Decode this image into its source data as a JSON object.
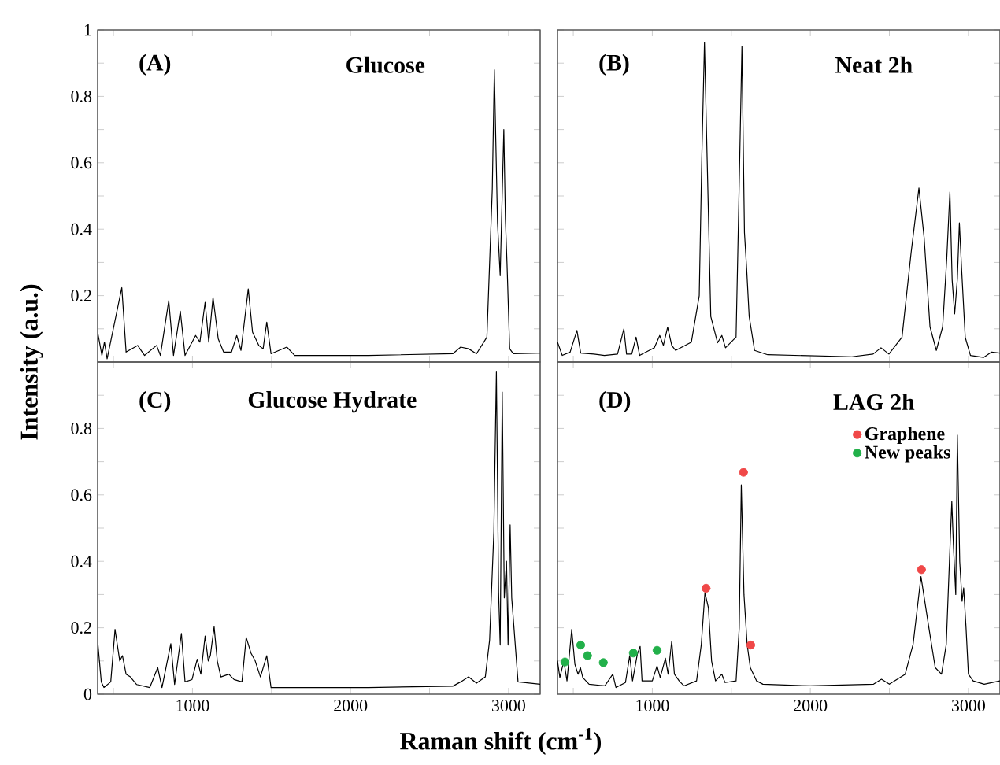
{
  "chart_data": [
    {
      "type": "line",
      "title": "Glucose",
      "annotations": [
        "(A)"
      ],
      "ylabel": "Intensity (a.u.)",
      "xlim": [
        400,
        3200
      ],
      "xticks": [
        {
          "value": 500,
          "label": null
        },
        1000,
        {
          "value": 1500,
          "label": null
        },
        2000,
        {
          "value": 2500,
          "label": null
        },
        3000
      ],
      "ylim": [
        0,
        1
      ],
      "yticks": [
        {
          "value": 0.1,
          "label": null
        },
        0.2,
        {
          "value": 0.3,
          "label": null
        },
        0.4,
        {
          "value": 0.5,
          "label": null
        },
        0.6,
        {
          "value": 0.7,
          "label": null
        },
        0.8,
        {
          "value": 0.9,
          "label": null
        },
        1
      ],
      "tick_labels": "y",
      "grid": false,
      "legend": false,
      "series": [
        {
          "color": "#000000",
          "x": [
            400,
            427,
            443,
            460,
            553,
            580,
            653,
            697,
            773,
            797,
            850,
            880,
            923,
            953,
            1020,
            1047,
            1080,
            1103,
            1130,
            1163,
            1197,
            1247,
            1280,
            1307,
            1353,
            1380,
            1420,
            1447,
            1470,
            1497,
            1597,
            1647,
            2113,
            2647,
            2697,
            2747,
            2797,
            2863,
            2897,
            2910,
            2930,
            2947,
            2970,
            2980,
            2990,
            3007,
            3030,
            3200
          ],
          "values": [
            0.09,
            0.02,
            0.06,
            0.01,
            0.224,
            0.03,
            0.05,
            0.02,
            0.05,
            0.02,
            0.185,
            0.02,
            0.153,
            0.02,
            0.08,
            0.06,
            0.18,
            0.06,
            0.195,
            0.07,
            0.03,
            0.03,
            0.08,
            0.035,
            0.22,
            0.09,
            0.05,
            0.04,
            0.12,
            0.025,
            0.045,
            0.02,
            0.02,
            0.025,
            0.045,
            0.04,
            0.025,
            0.075,
            0.52,
            0.88,
            0.42,
            0.26,
            0.7,
            0.43,
            0.3,
            0.04,
            0.025,
            0.027
          ]
        }
      ]
    },
    {
      "type": "line",
      "title": "Neat 2h",
      "annotations": [
        "(B)"
      ],
      "xlim": [
        400,
        3200
      ],
      "xticks": [
        {
          "value": 500,
          "label": null
        },
        1000,
        {
          "value": 1500,
          "label": null
        },
        2000,
        {
          "value": 2500,
          "label": null
        },
        3000
      ],
      "ylim": [
        0,
        1
      ],
      "yticks": [
        {
          "value": 0.1,
          "label": null
        },
        0.2,
        {
          "value": 0.3,
          "label": null
        },
        0.4,
        {
          "value": 0.5,
          "label": null
        },
        0.6,
        {
          "value": 0.7,
          "label": null
        },
        0.8,
        {
          "value": 0.9,
          "label": null
        },
        1
      ],
      "tick_labels": false,
      "grid": false,
      "legend": false,
      "series": [
        {
          "color": "#000000",
          "x": [
            400,
            430,
            480,
            523,
            547,
            630,
            697,
            780,
            820,
            837,
            870,
            897,
            920,
            980,
            1013,
            1047,
            1070,
            1097,
            1123,
            1147,
            1247,
            1297,
            1313,
            1330,
            1347,
            1370,
            1413,
            1440,
            1463,
            1530,
            1553,
            1567,
            1583,
            1597,
            1613,
            1647,
            1730,
            2263,
            2397,
            2447,
            2497,
            2580,
            2637,
            2687,
            2720,
            2757,
            2797,
            2837,
            2863,
            2883,
            2897,
            2913,
            2930,
            2943,
            2957,
            2980,
            3013,
            3097,
            3147,
            3200
          ],
          "values": [
            0.06,
            0.02,
            0.03,
            0.095,
            0.027,
            0.024,
            0.02,
            0.024,
            0.1,
            0.024,
            0.024,
            0.075,
            0.02,
            0.035,
            0.043,
            0.08,
            0.05,
            0.105,
            0.05,
            0.035,
            0.06,
            0.2,
            0.61,
            0.962,
            0.61,
            0.137,
            0.058,
            0.08,
            0.043,
            0.075,
            0.61,
            0.95,
            0.39,
            0.28,
            0.137,
            0.035,
            0.022,
            0.016,
            0.024,
            0.043,
            0.024,
            0.075,
            0.327,
            0.524,
            0.374,
            0.106,
            0.035,
            0.106,
            0.311,
            0.512,
            0.248,
            0.145,
            0.25,
            0.419,
            0.28,
            0.074,
            0.02,
            0.014,
            0.03,
            0.027
          ]
        }
      ]
    },
    {
      "type": "line",
      "title": "Glucose Hydrate",
      "annotations": [
        "(C)"
      ],
      "xlabel": "Raman shift (cm$^{-1}$)",
      "xlim": [
        400,
        3200
      ],
      "xticks": [
        {
          "value": 500,
          "label": null
        },
        1000,
        {
          "value": 1500,
          "label": null
        },
        2000,
        {
          "value": 2500,
          "label": null
        },
        3000
      ],
      "ylim": [
        0,
        1
      ],
      "yticks": [
        0,
        {
          "value": 0.1,
          "label": null
        },
        0.2,
        {
          "value": 0.3,
          "label": null
        },
        0.4,
        {
          "value": 0.5,
          "label": null
        },
        0.6,
        {
          "value": 0.7,
          "label": null
        },
        0.8,
        {
          "value": 0.9,
          "label": null
        }
      ],
      "grid": false,
      "legend": false,
      "series": [
        {
          "color": "#000000",
          "x": [
            400,
            423,
            440,
            483,
            510,
            540,
            557,
            580,
            607,
            647,
            730,
            780,
            807,
            863,
            887,
            930,
            953,
            997,
            1030,
            1053,
            1080,
            1100,
            1113,
            1137,
            1157,
            1180,
            1230,
            1263,
            1313,
            1340,
            1370,
            1397,
            1430,
            1470,
            1497,
            1580,
            2113,
            2647,
            2697,
            2747,
            2797,
            2853,
            2880,
            2907,
            2923,
            2937,
            2947,
            2960,
            2973,
            2987,
            2997,
            3010,
            3020,
            3060,
            3200
          ],
          "values": [
            0.16,
            0.037,
            0.02,
            0.037,
            0.195,
            0.1,
            0.116,
            0.06,
            0.052,
            0.029,
            0.02,
            0.08,
            0.02,
            0.152,
            0.029,
            0.183,
            0.037,
            0.044,
            0.105,
            0.06,
            0.175,
            0.1,
            0.116,
            0.203,
            0.1,
            0.052,
            0.06,
            0.044,
            0.037,
            0.171,
            0.124,
            0.1,
            0.052,
            0.116,
            0.02,
            0.02,
            0.02,
            0.024,
            0.037,
            0.052,
            0.033,
            0.052,
            0.163,
            0.489,
            0.97,
            0.306,
            0.148,
            0.91,
            0.29,
            0.4,
            0.148,
            0.51,
            0.29,
            0.037,
            0.03
          ]
        }
      ]
    },
    {
      "type": "line",
      "title": "LAG 2h",
      "annotations": [
        "(D)"
      ],
      "xlim": [
        400,
        3200
      ],
      "xticks": [
        {
          "value": 500,
          "label": null
        },
        1000,
        {
          "value": 1500,
          "label": null
        },
        2000,
        {
          "value": 2500,
          "label": null
        },
        3000
      ],
      "ylim": [
        0,
        1
      ],
      "yticks": [
        {
          "value": 0.1,
          "label": null
        },
        0.2,
        {
          "value": 0.3,
          "label": null
        },
        0.4,
        {
          "value": 0.5,
          "label": null
        },
        0.6,
        {
          "value": 0.7,
          "label": null
        },
        0.8,
        {
          "value": 0.9,
          "label": null
        }
      ],
      "tick_labels": "x",
      "grid": false,
      "legend": "top right",
      "series": [
        {
          "color": "#000000",
          "x": [
            400,
            415,
            440,
            460,
            490,
            510,
            530,
            545,
            560,
            600,
            700,
            750,
            770,
            830,
            857,
            875,
            905,
            923,
            935,
            1000,
            1030,
            1050,
            1083,
            1100,
            1123,
            1140,
            1170,
            1200,
            1280,
            1310,
            1333,
            1355,
            1375,
            1400,
            1440,
            1460,
            1530,
            1550,
            1563,
            1580,
            1600,
            1620,
            1660,
            1700,
            2000,
            2400,
            2450,
            2500,
            2600,
            2650,
            2700,
            2750,
            2790,
            2830,
            2860,
            2880,
            2895,
            2905,
            2920,
            2930,
            2945,
            2960,
            2970,
            2985,
            3000,
            3030,
            3100,
            3200
          ],
          "values": [
            0.1,
            0.05,
            0.1,
            0.04,
            0.195,
            0.09,
            0.06,
            0.08,
            0.05,
            0.03,
            0.025,
            0.06,
            0.02,
            0.035,
            0.116,
            0.04,
            0.12,
            0.144,
            0.04,
            0.04,
            0.085,
            0.05,
            0.108,
            0.06,
            0.16,
            0.06,
            0.04,
            0.025,
            0.04,
            0.15,
            0.306,
            0.26,
            0.1,
            0.04,
            0.06,
            0.035,
            0.04,
            0.2,
            0.63,
            0.3,
            0.15,
            0.08,
            0.04,
            0.03,
            0.025,
            0.03,
            0.045,
            0.03,
            0.06,
            0.15,
            0.354,
            0.2,
            0.08,
            0.06,
            0.15,
            0.4,
            0.58,
            0.45,
            0.3,
            0.78,
            0.4,
            0.28,
            0.32,
            0.2,
            0.06,
            0.04,
            0.03,
            0.04
          ]
        },
        {
          "type": "scatter",
          "name": "Graphene",
          "color": "#f04848",
          "marker": "circle",
          "x": [
            1340,
            1577,
            1623,
            2703
          ],
          "values": [
            0.319,
            0.668,
            0.148,
            0.375
          ]
        },
        {
          "type": "scatter",
          "name": "New peaks",
          "color": "#22b04a",
          "marker": "circle",
          "x": [
            447,
            547,
            590,
            690,
            880,
            1030
          ],
          "values": [
            0.097,
            0.148,
            0.116,
            0.095,
            0.124,
            0.132
          ]
        }
      ]
    }
  ]
}
